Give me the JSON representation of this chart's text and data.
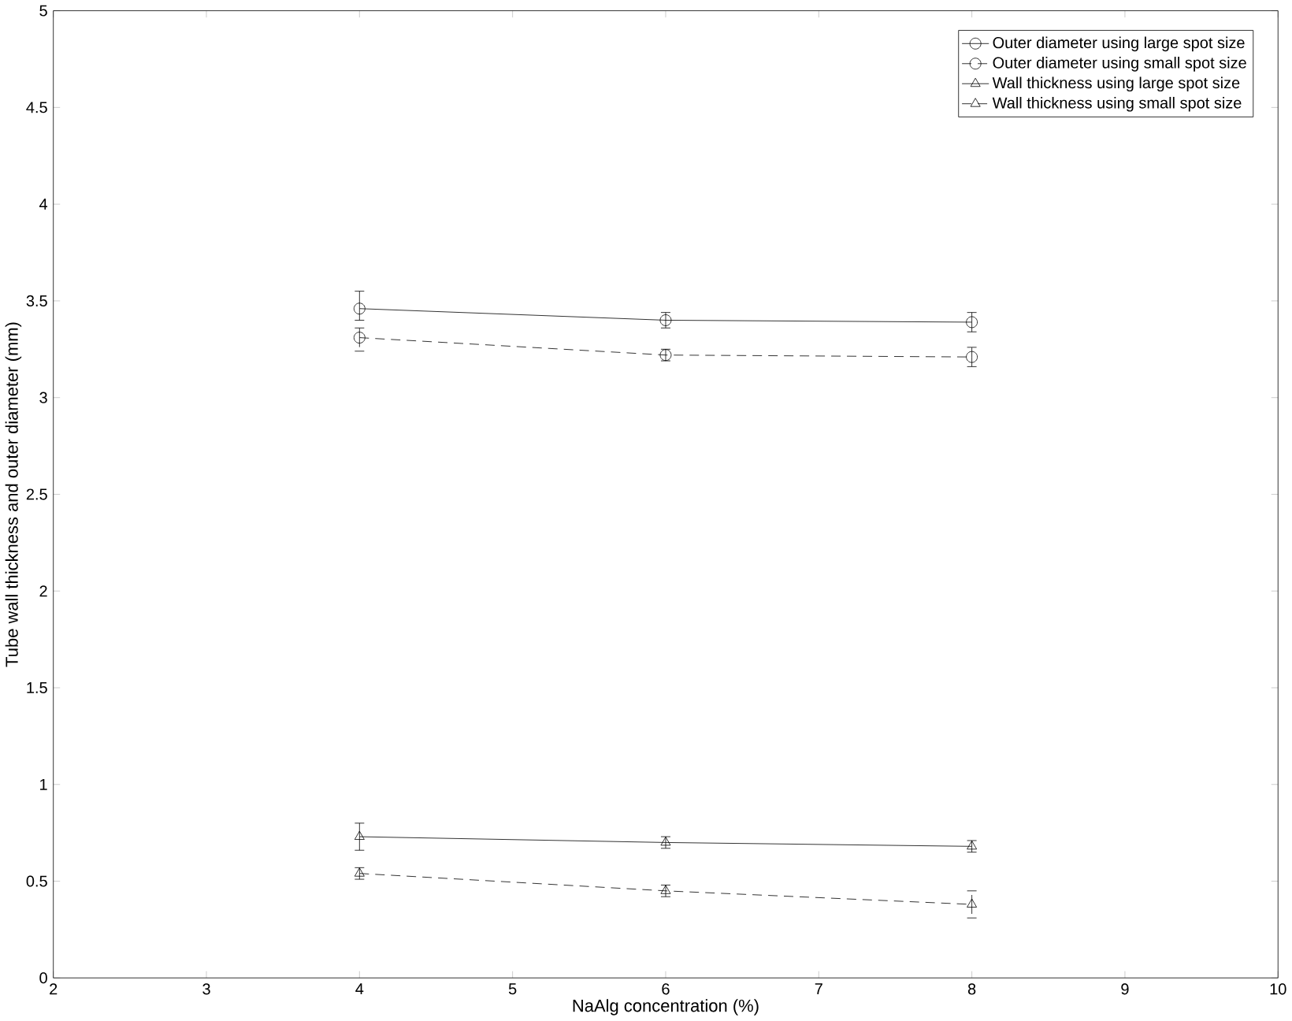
{
  "chart_data": {
    "type": "line",
    "xlabel": "NaAlg concentration (%)",
    "ylabel": "Tube wall thickness and outer diameter (mm)",
    "x": [
      4,
      6,
      8
    ],
    "xlim": [
      2,
      10
    ],
    "xticks": [
      2,
      3,
      4,
      5,
      6,
      7,
      8,
      9,
      10
    ],
    "ylim": [
      0,
      5
    ],
    "yticks": [
      0,
      0.5,
      1,
      1.5,
      2,
      2.5,
      3,
      3.5,
      4,
      4.5,
      5
    ],
    "legend": "top right",
    "grid": false,
    "series": [
      {
        "name": "Outer diameter using large spot size",
        "color": "#000000",
        "marker": "circle",
        "line_style": "solid",
        "values": [
          3.46,
          3.4,
          3.39
        ],
        "errors": [
          [
            3.4,
            3.55
          ],
          0.04,
          0.05
        ]
      },
      {
        "name": "Outer diameter using small spot size",
        "color": "#000000",
        "marker": "circle",
        "line_style": "dashed",
        "values": [
          3.31,
          3.22,
          3.21
        ],
        "errors": [
          [
            3.24,
            3.36
          ],
          0.03,
          0.05
        ]
      },
      {
        "name": "Wall thickness using large spot size",
        "color": "#000000",
        "marker": "triangle",
        "line_style": "solid",
        "values": [
          0.73,
          0.7,
          0.68
        ],
        "errors": [
          0.07,
          0.03,
          0.03
        ]
      },
      {
        "name": "Wall thickness using small spot size",
        "color": "#000000",
        "marker": "triangle",
        "line_style": "dashed",
        "values": [
          0.54,
          0.45,
          0.38
        ],
        "errors": [
          0.03,
          0.03,
          0.07
        ]
      }
    ]
  }
}
